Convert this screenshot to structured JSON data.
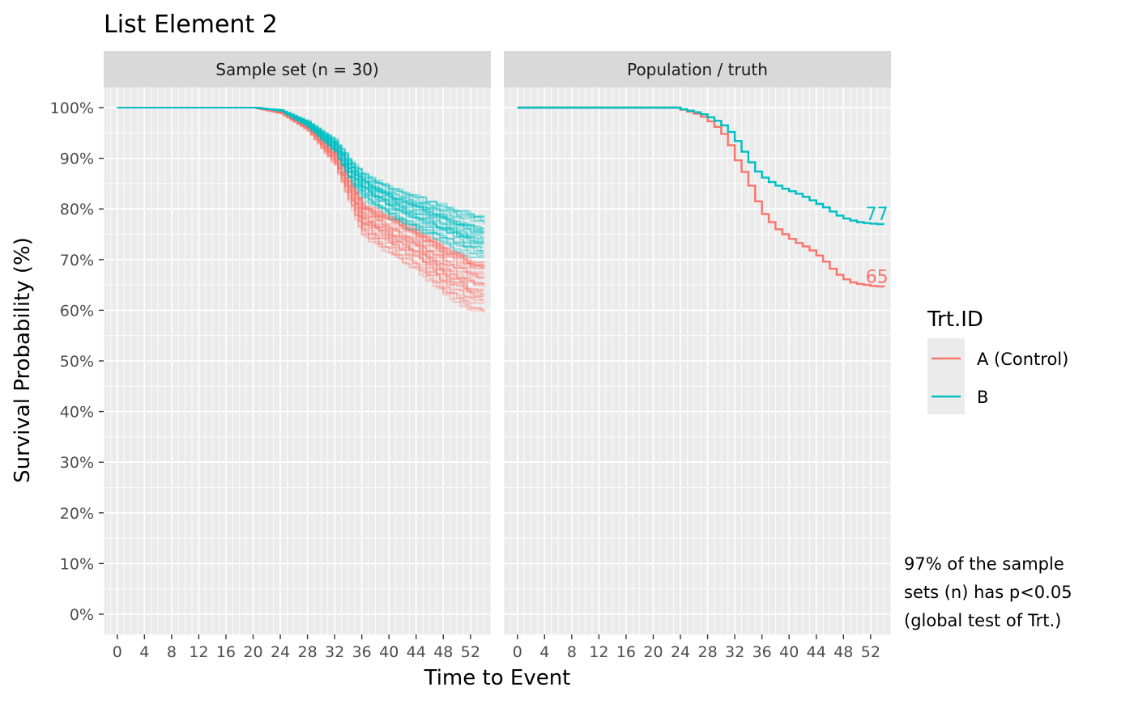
{
  "title": "List Element 2",
  "y_axis_label": "Survival Probability (%)",
  "x_axis_label": "Time to Event",
  "colors": {
    "A (Control)": "#F8766D",
    "B": "#00BFC4",
    "panel_bg": "#EBEBEB",
    "strip_bg": "#D9D9D9"
  },
  "legend": {
    "title": "Trt.ID",
    "items": [
      {
        "label": "A (Control)",
        "color": "#F8766D"
      },
      {
        "label": "B",
        "color": "#00BFC4"
      }
    ]
  },
  "note_lines": [
    "97% of the sample",
    "sets (n) has p<0.05",
    "(global test of Trt.)"
  ],
  "chart_data": [
    {
      "type": "line",
      "panel": "Sample set (n = 30)",
      "xlim": [
        -2,
        55
      ],
      "ylim": [
        -4,
        104
      ],
      "x_ticks": [
        0,
        4,
        8,
        12,
        16,
        20,
        24,
        28,
        32,
        36,
        40,
        44,
        48,
        52
      ],
      "y_ticks": [
        0,
        10,
        20,
        30,
        40,
        50,
        60,
        70,
        80,
        90,
        100
      ],
      "y_tick_labels": [
        "0%",
        "10%",
        "20%",
        "30%",
        "40%",
        "50%",
        "60%",
        "70%",
        "80%",
        "90%",
        "100%"
      ],
      "grid": true,
      "replicates": 30,
      "series": [
        {
          "name": "A (Control)",
          "x": [
            0,
            20,
            24,
            28,
            32,
            34,
            36,
            40,
            44,
            48,
            52,
            54
          ],
          "y": [
            100,
            100,
            99,
            96,
            90,
            84,
            78,
            75,
            72,
            68,
            65,
            65
          ],
          "final_spread": [
            60,
            70
          ]
        },
        {
          "name": "B",
          "x": [
            0,
            20,
            24,
            28,
            32,
            34,
            36,
            40,
            44,
            48,
            52,
            54
          ],
          "y": [
            100,
            100,
            99.5,
            97,
            93,
            89,
            86,
            83,
            81,
            79,
            77,
            77
          ],
          "final_spread": [
            70.5,
            79.5
          ]
        }
      ]
    },
    {
      "type": "line",
      "panel": "Population / truth",
      "xlim": [
        -2,
        55
      ],
      "ylim": [
        -4,
        104
      ],
      "x_ticks": [
        0,
        4,
        8,
        12,
        16,
        20,
        24,
        28,
        32,
        36,
        40,
        44,
        48,
        52
      ],
      "y_ticks": [
        0,
        10,
        20,
        30,
        40,
        50,
        60,
        70,
        80,
        90,
        100
      ],
      "grid": true,
      "series": [
        {
          "name": "A (Control)",
          "x": [
            0,
            22,
            24,
            25,
            26,
            27,
            28,
            29,
            30,
            31,
            32,
            33,
            34,
            35,
            36,
            37,
            38,
            39,
            40,
            41,
            42,
            43,
            44,
            45,
            46,
            47,
            48,
            49,
            50,
            51,
            52,
            53,
            54
          ],
          "y": [
            100,
            100,
            99.6,
            99.2,
            98.8,
            98.2,
            97.3,
            96.2,
            94.8,
            92.6,
            89.6,
            87.3,
            84.6,
            81.5,
            79,
            77.4,
            76,
            75,
            74.1,
            73.3,
            72.6,
            71.8,
            70.8,
            69.6,
            68.2,
            67,
            66.1,
            65.5,
            65.2,
            65,
            64.8,
            64.7,
            64.6
          ],
          "end_label": "65"
        },
        {
          "name": "B",
          "x": [
            0,
            22,
            24,
            25,
            26,
            27,
            28,
            29,
            30,
            31,
            32,
            33,
            34,
            35,
            36,
            37,
            38,
            39,
            40,
            41,
            42,
            43,
            44,
            45,
            46,
            47,
            48,
            49,
            50,
            51,
            52,
            53,
            54
          ],
          "y": [
            100,
            100,
            99.7,
            99.4,
            99.1,
            98.7,
            98.1,
            97.4,
            96.5,
            95.2,
            93.4,
            91.3,
            89.2,
            87.4,
            86.2,
            85.3,
            84.6,
            84,
            83.5,
            83,
            82.4,
            81.7,
            81,
            80.3,
            79.5,
            78.7,
            78.1,
            77.7,
            77.4,
            77.2,
            77.1,
            77,
            77
          ],
          "end_label": "77"
        }
      ]
    }
  ]
}
